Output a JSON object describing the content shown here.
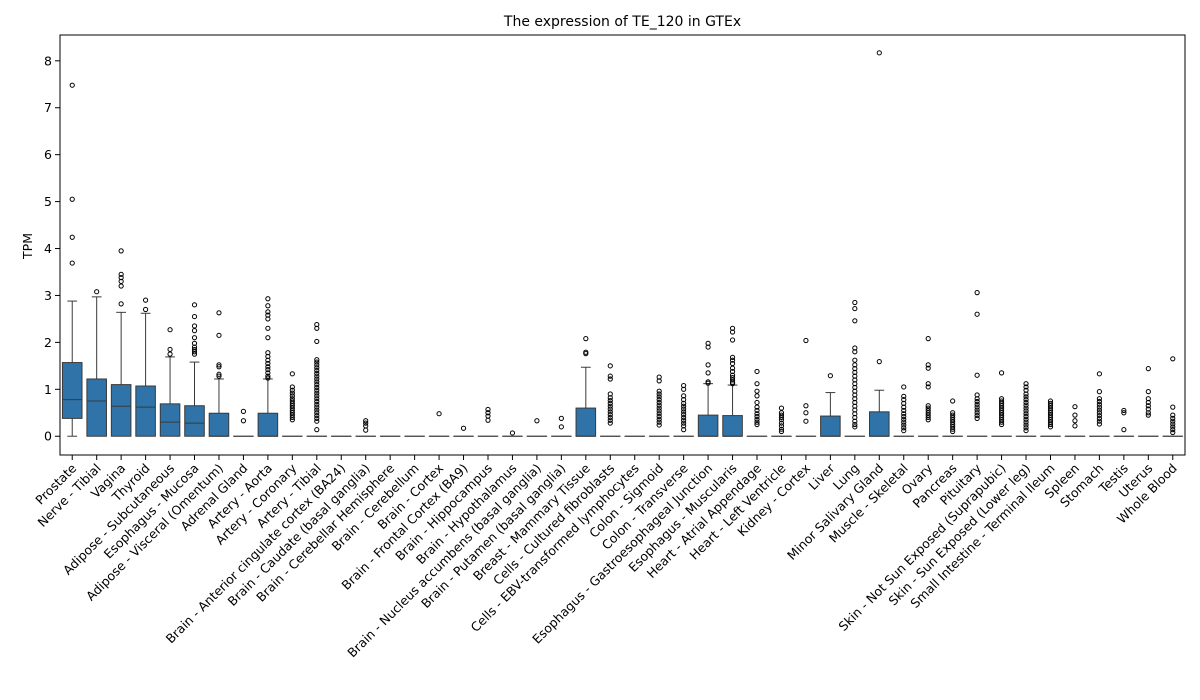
{
  "chart_data": {
    "type": "box",
    "title": "The expression of TE_120 in GTEx",
    "xlabel": "",
    "ylabel": "TPM",
    "ylim": [
      -0.4,
      8.55
    ],
    "yticks": [
      0,
      1,
      2,
      3,
      4,
      5,
      6,
      7,
      8
    ],
    "grid": false,
    "box_color": "#2f73a8",
    "median_color": "#3a3a3a",
    "categories": [
      "Prostate",
      "Nerve - Tibial",
      "Vagina",
      "Thyroid",
      "Adipose - Subcutaneous",
      "Esophagus - Mucosa",
      "Adipose - Visceral (Omentum)",
      "Adrenal Gland",
      "Artery - Aorta",
      "Artery - Coronary",
      "Artery - Tibial",
      "Brain - Anterior cingulate cortex (BA24)",
      "Brain - Caudate (basal ganglia)",
      "Brain - Cerebellar Hemisphere",
      "Brain - Cerebellum",
      "Brain - Cortex",
      "Brain - Frontal Cortex (BA9)",
      "Brain - Hippocampus",
      "Brain - Hypothalamus",
      "Brain - Nucleus accumbens (basal ganglia)",
      "Brain - Putamen (basal ganglia)",
      "Breast - Mammary Tissue",
      "Cells - Cultured fibroblasts",
      "Cells - EBV-transformed lymphocytes",
      "Colon - Sigmoid",
      "Colon - Transverse",
      "Esophagus - Gastroesophageal Junction",
      "Esophagus - Muscularis",
      "Heart - Atrial Appendage",
      "Heart - Left Ventricle",
      "Kidney - Cortex",
      "Liver",
      "Lung",
      "Minor Salivary Gland",
      "Muscle - Skeletal",
      "Ovary",
      "Pancreas",
      "Pituitary",
      "Skin - Not Sun Exposed (Suprapubic)",
      "Skin - Sun Exposed (Lower leg)",
      "Small Intestine - Terminal Ileum",
      "Spleen",
      "Stomach",
      "Testis",
      "Uterus",
      "Whole Blood"
    ],
    "boxes": [
      {
        "q1": 0.38,
        "median": 0.78,
        "q3": 1.57,
        "whisker_low": 0.0,
        "whisker_high": 2.88,
        "outliers": [
          7.48,
          5.05,
          4.24,
          3.69
        ]
      },
      {
        "q1": 0.0,
        "median": 0.75,
        "q3": 1.22,
        "whisker_low": 0.0,
        "whisker_high": 2.97,
        "outliers": [
          3.08
        ]
      },
      {
        "q1": 0.0,
        "median": 0.64,
        "q3": 1.1,
        "whisker_low": 0.0,
        "whisker_high": 2.64,
        "outliers": [
          3.95,
          3.45,
          3.38,
          3.3,
          3.2,
          2.82
        ]
      },
      {
        "q1": 0.0,
        "median": 0.62,
        "q3": 1.07,
        "whisker_low": 0.0,
        "whisker_high": 2.62,
        "outliers": [
          2.9,
          2.7
        ]
      },
      {
        "q1": 0.0,
        "median": 0.3,
        "q3": 0.69,
        "whisker_low": 0.0,
        "whisker_high": 1.69,
        "outliers": [
          2.27,
          1.85,
          1.75
        ]
      },
      {
        "q1": 0.0,
        "median": 0.28,
        "q3": 0.65,
        "whisker_low": 0.0,
        "whisker_high": 1.58,
        "outliers": [
          2.8,
          2.55,
          2.35,
          2.25,
          2.1,
          1.98,
          1.9,
          1.85,
          1.8,
          1.75
        ]
      },
      {
        "q1": 0.0,
        "median": 0.0,
        "q3": 0.49,
        "whisker_low": 0.0,
        "whisker_high": 1.22,
        "outliers": [
          2.63,
          2.15,
          1.52,
          1.48,
          1.32,
          1.28
        ]
      },
      {
        "q1": 0.0,
        "median": 0.0,
        "q3": 0.0,
        "whisker_low": 0.0,
        "whisker_high": 0.0,
        "outliers": [
          0.53,
          0.33
        ]
      },
      {
        "q1": 0.0,
        "median": 0.0,
        "q3": 0.49,
        "whisker_low": 0.0,
        "whisker_high": 1.22,
        "outliers": [
          2.93,
          2.78,
          2.65,
          2.58,
          2.5,
          2.3,
          2.1,
          1.78,
          1.7,
          1.62,
          1.55,
          1.48,
          1.42,
          1.35,
          1.28,
          1.24
        ]
      },
      {
        "q1": 0.0,
        "median": 0.0,
        "q3": 0.0,
        "whisker_low": 0.0,
        "whisker_high": 0.0,
        "outliers": [
          1.33,
          1.05,
          0.98,
          0.92,
          0.86,
          0.8,
          0.75,
          0.7,
          0.65,
          0.6,
          0.55,
          0.5,
          0.45,
          0.4,
          0.35
        ]
      },
      {
        "q1": 0.0,
        "median": 0.0,
        "q3": 0.0,
        "whisker_low": 0.0,
        "whisker_high": 0.0,
        "outliers": [
          2.38,
          2.3,
          2.02,
          1.63,
          1.58,
          1.52,
          1.46,
          1.4,
          1.34,
          1.28,
          1.22,
          1.16,
          1.1,
          1.04,
          0.98,
          0.92,
          0.86,
          0.8,
          0.74,
          0.68,
          0.62,
          0.56,
          0.5,
          0.44,
          0.38,
          0.32,
          0.14
        ]
      },
      {
        "q1": 0.0,
        "median": 0.0,
        "q3": 0.0,
        "whisker_low": 0.0,
        "whisker_high": 0.0,
        "outliers": []
      },
      {
        "q1": 0.0,
        "median": 0.0,
        "q3": 0.0,
        "whisker_low": 0.0,
        "whisker_high": 0.0,
        "outliers": [
          0.33,
          0.28,
          0.22,
          0.13
        ]
      },
      {
        "q1": 0.0,
        "median": 0.0,
        "q3": 0.0,
        "whisker_low": 0.0,
        "whisker_high": 0.0,
        "outliers": []
      },
      {
        "q1": 0.0,
        "median": 0.0,
        "q3": 0.0,
        "whisker_low": 0.0,
        "whisker_high": 0.0,
        "outliers": []
      },
      {
        "q1": 0.0,
        "median": 0.0,
        "q3": 0.0,
        "whisker_low": 0.0,
        "whisker_high": 0.0,
        "outliers": [
          0.48
        ]
      },
      {
        "q1": 0.0,
        "median": 0.0,
        "q3": 0.0,
        "whisker_low": 0.0,
        "whisker_high": 0.0,
        "outliers": [
          0.17
        ]
      },
      {
        "q1": 0.0,
        "median": 0.0,
        "q3": 0.0,
        "whisker_low": 0.0,
        "whisker_high": 0.0,
        "outliers": [
          0.57,
          0.5,
          0.43,
          0.34
        ]
      },
      {
        "q1": 0.0,
        "median": 0.0,
        "q3": 0.0,
        "whisker_low": 0.0,
        "whisker_high": 0.0,
        "outliers": [
          0.07
        ]
      },
      {
        "q1": 0.0,
        "median": 0.0,
        "q3": 0.0,
        "whisker_low": 0.0,
        "whisker_high": 0.0,
        "outliers": [
          0.33
        ]
      },
      {
        "q1": 0.0,
        "median": 0.0,
        "q3": 0.0,
        "whisker_low": 0.0,
        "whisker_high": 0.0,
        "outliers": [
          0.38,
          0.2
        ]
      },
      {
        "q1": 0.0,
        "median": 0.0,
        "q3": 0.6,
        "whisker_low": 0.0,
        "whisker_high": 1.47,
        "outliers": [
          2.08,
          1.79,
          1.76
        ]
      },
      {
        "q1": 0.0,
        "median": 0.0,
        "q3": 0.0,
        "whisker_low": 0.0,
        "whisker_high": 0.0,
        "outliers": [
          1.5,
          1.28,
          1.22,
          0.9,
          0.82,
          0.76,
          0.7,
          0.64,
          0.58,
          0.52,
          0.46,
          0.4,
          0.34,
          0.28
        ]
      },
      {
        "q1": 0.0,
        "median": 0.0,
        "q3": 0.0,
        "whisker_low": 0.0,
        "whisker_high": 0.0,
        "outliers": []
      },
      {
        "q1": 0.0,
        "median": 0.0,
        "q3": 0.0,
        "whisker_low": 0.0,
        "whisker_high": 0.0,
        "outliers": [
          1.26,
          1.18,
          0.96,
          0.9,
          0.84,
          0.78,
          0.72,
          0.66,
          0.6,
          0.54,
          0.48,
          0.42,
          0.36,
          0.3,
          0.24
        ]
      },
      {
        "q1": 0.0,
        "median": 0.0,
        "q3": 0.0,
        "whisker_low": 0.0,
        "whisker_high": 0.0,
        "outliers": [
          1.08,
          1.0,
          0.86,
          0.78,
          0.7,
          0.64,
          0.58,
          0.52,
          0.46,
          0.4,
          0.34,
          0.28,
          0.22,
          0.14
        ]
      },
      {
        "q1": 0.0,
        "median": 0.0,
        "q3": 0.45,
        "whisker_low": 0.0,
        "whisker_high": 1.12,
        "outliers": [
          1.98,
          1.9,
          1.52,
          1.35,
          1.16,
          1.13
        ]
      },
      {
        "q1": 0.0,
        "median": 0.0,
        "q3": 0.44,
        "whisker_low": 0.0,
        "whisker_high": 1.09,
        "outliers": [
          2.3,
          2.22,
          2.05,
          1.68,
          1.62,
          1.55,
          1.45,
          1.38,
          1.3,
          1.25,
          1.2,
          1.15,
          1.12
        ]
      },
      {
        "q1": 0.0,
        "median": 0.0,
        "q3": 0.0,
        "whisker_low": 0.0,
        "whisker_high": 0.0,
        "outliers": [
          1.38,
          1.12,
          0.96,
          0.86,
          0.72,
          0.62,
          0.55,
          0.48,
          0.42,
          0.36,
          0.3,
          0.25
        ]
      },
      {
        "q1": 0.0,
        "median": 0.0,
        "q3": 0.0,
        "whisker_low": 0.0,
        "whisker_high": 0.0,
        "outliers": [
          0.6,
          0.5,
          0.45,
          0.4,
          0.35,
          0.28,
          0.22,
          0.15,
          0.1
        ]
      },
      {
        "q1": 0.0,
        "median": 0.0,
        "q3": 0.0,
        "whisker_low": 0.0,
        "whisker_high": 0.0,
        "outliers": [
          2.04,
          0.65,
          0.5,
          0.32
        ]
      },
      {
        "q1": 0.0,
        "median": 0.0,
        "q3": 0.43,
        "whisker_low": 0.0,
        "whisker_high": 0.93,
        "outliers": [
          1.29
        ]
      },
      {
        "q1": 0.0,
        "median": 0.0,
        "q3": 0.0,
        "whisker_low": 0.0,
        "whisker_high": 0.0,
        "outliers": [
          2.85,
          2.72,
          2.46,
          1.88,
          1.8,
          1.62,
          1.52,
          1.44,
          1.36,
          1.28,
          1.2,
          1.12,
          1.04,
          0.96,
          0.88,
          0.8,
          0.72,
          0.64,
          0.56,
          0.48,
          0.4,
          0.32,
          0.25,
          0.2
        ]
      },
      {
        "q1": 0.0,
        "median": 0.0,
        "q3": 0.52,
        "whisker_low": 0.0,
        "whisker_high": 0.98,
        "outliers": [
          8.17,
          1.59
        ]
      },
      {
        "q1": 0.0,
        "median": 0.0,
        "q3": 0.0,
        "whisker_low": 0.0,
        "whisker_high": 0.0,
        "outliers": [
          1.05,
          0.85,
          0.78,
          0.7,
          0.62,
          0.55,
          0.48,
          0.42,
          0.36,
          0.3,
          0.24,
          0.18,
          0.12
        ]
      },
      {
        "q1": 0.0,
        "median": 0.0,
        "q3": 0.0,
        "whisker_low": 0.0,
        "whisker_high": 0.0,
        "outliers": [
          2.08,
          1.52,
          1.45,
          1.12,
          1.05,
          0.65,
          0.6,
          0.55,
          0.5,
          0.45,
          0.4,
          0.35
        ]
      },
      {
        "q1": 0.0,
        "median": 0.0,
        "q3": 0.0,
        "whisker_low": 0.0,
        "whisker_high": 0.0,
        "outliers": [
          0.75,
          0.5,
          0.45,
          0.4,
          0.35,
          0.3,
          0.25,
          0.2,
          0.15,
          0.1
        ]
      },
      {
        "q1": 0.0,
        "median": 0.0,
        "q3": 0.0,
        "whisker_low": 0.0,
        "whisker_high": 0.0,
        "outliers": [
          3.06,
          2.6,
          1.3,
          0.88,
          0.8,
          0.74,
          0.68,
          0.62,
          0.56,
          0.5,
          0.44,
          0.38
        ]
      },
      {
        "q1": 0.0,
        "median": 0.0,
        "q3": 0.0,
        "whisker_low": 0.0,
        "whisker_high": 0.0,
        "outliers": [
          1.35,
          0.8,
          0.75,
          0.7,
          0.65,
          0.6,
          0.55,
          0.5,
          0.45,
          0.4,
          0.35,
          0.3,
          0.25
        ]
      },
      {
        "q1": 0.0,
        "median": 0.0,
        "q3": 0.0,
        "whisker_low": 0.0,
        "whisker_high": 0.0,
        "outliers": [
          1.12,
          1.05,
          0.98,
          0.9,
          0.84,
          0.78,
          0.72,
          0.66,
          0.6,
          0.54,
          0.48,
          0.42,
          0.36,
          0.3,
          0.24,
          0.18,
          0.12
        ]
      },
      {
        "q1": 0.0,
        "median": 0.0,
        "q3": 0.0,
        "whisker_low": 0.0,
        "whisker_high": 0.0,
        "outliers": [
          0.75,
          0.7,
          0.65,
          0.6,
          0.55,
          0.5,
          0.45,
          0.4,
          0.35,
          0.3,
          0.25,
          0.2
        ]
      },
      {
        "q1": 0.0,
        "median": 0.0,
        "q3": 0.0,
        "whisker_low": 0.0,
        "whisker_high": 0.0,
        "outliers": [
          0.63,
          0.45,
          0.33,
          0.22
        ]
      },
      {
        "q1": 0.0,
        "median": 0.0,
        "q3": 0.0,
        "whisker_low": 0.0,
        "whisker_high": 0.0,
        "outliers": [
          1.33,
          0.95,
          0.8,
          0.74,
          0.68,
          0.62,
          0.56,
          0.5,
          0.44,
          0.38,
          0.32,
          0.26
        ]
      },
      {
        "q1": 0.0,
        "median": 0.0,
        "q3": 0.0,
        "whisker_low": 0.0,
        "whisker_high": 0.0,
        "outliers": [
          0.55,
          0.5,
          0.14
        ]
      },
      {
        "q1": 0.0,
        "median": 0.0,
        "q3": 0.0,
        "whisker_low": 0.0,
        "whisker_high": 0.0,
        "outliers": [
          1.44,
          0.95,
          0.8,
          0.72,
          0.65,
          0.58,
          0.5,
          0.45
        ]
      },
      {
        "q1": 0.0,
        "median": 0.0,
        "q3": 0.0,
        "whisker_low": 0.0,
        "whisker_high": 0.0,
        "outliers": [
          1.65,
          0.62,
          0.45,
          0.38,
          0.32,
          0.26,
          0.2,
          0.14,
          0.08
        ]
      }
    ]
  }
}
